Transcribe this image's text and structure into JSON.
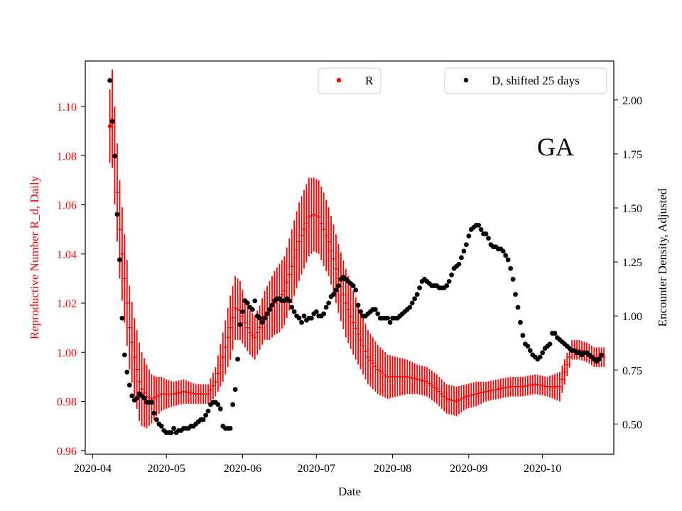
{
  "chart_data": {
    "type": "scatter",
    "state_label": "GA",
    "xlabel": "Date",
    "ylabel_left": "Reproductive Number R_d, Daily",
    "ylabel_right": "Encounter Density, Adjusted",
    "x_ticks": [
      "2020-04",
      "2020-05",
      "2020-06",
      "2020-07",
      "2020-08",
      "2020-09",
      "2020-10"
    ],
    "x_tick_days": [
      0,
      30,
      61,
      91,
      122,
      153,
      183
    ],
    "xlim_days": [
      -3,
      212
    ],
    "ylim_left": [
      0.9585,
      1.1185
    ],
    "ylim_right": [
      0.36,
      2.18
    ],
    "yticks_left": [
      "0.96",
      "0.98",
      "1.00",
      "1.02",
      "1.04",
      "1.06",
      "1.08",
      "1.10"
    ],
    "yticks_right": [
      "0.50",
      "0.75",
      "1.00",
      "1.25",
      "1.50",
      "1.75",
      "2.00"
    ],
    "legend_left": "R",
    "legend_right": "D, shifted 25 days",
    "colors": {
      "R": "#ff0000",
      "D": "#000000",
      "left_axis": "#ff0000"
    },
    "series": [
      {
        "name": "R",
        "axis": "left",
        "note": "daily Rd with vertical error bars (knots interpolated daily)",
        "day": [
          7,
          8,
          9,
          10,
          11,
          13,
          15,
          17,
          19,
          20,
          22,
          24,
          26,
          28,
          30,
          33,
          37,
          42,
          47,
          50,
          53,
          56,
          58,
          60,
          62,
          64,
          66,
          68,
          70,
          72,
          74,
          76,
          78,
          81,
          84,
          86,
          88,
          90,
          92,
          94,
          96,
          98,
          100,
          103,
          106,
          109,
          112,
          116,
          120,
          124,
          128,
          132,
          136,
          140,
          144,
          148,
          152,
          156,
          160,
          165,
          170,
          175,
          180,
          185,
          190,
          195,
          198,
          201,
          204,
          208
        ],
        "value": [
          1.092,
          1.095,
          1.08,
          1.065,
          1.05,
          1.03,
          1.01,
          0.998,
          0.988,
          0.985,
          0.982,
          0.981,
          0.982,
          0.983,
          0.983,
          0.983,
          0.984,
          0.983,
          0.983,
          0.988,
          0.998,
          1.01,
          1.018,
          1.017,
          1.012,
          1.008,
          1.006,
          1.01,
          1.015,
          1.017,
          1.02,
          1.022,
          1.025,
          1.035,
          1.045,
          1.05,
          1.055,
          1.056,
          1.055,
          1.05,
          1.045,
          1.038,
          1.03,
          1.02,
          1.012,
          1.005,
          0.998,
          0.993,
          0.99,
          0.99,
          0.99,
          0.989,
          0.988,
          0.985,
          0.981,
          0.98,
          0.982,
          0.983,
          0.984,
          0.985,
          0.986,
          0.986,
          0.987,
          0.986,
          0.986,
          1.001,
          1.001,
          1.0,
          0.998,
          0.998
        ],
        "half_width": [
          0.015,
          0.02,
          0.02,
          0.02,
          0.02,
          0.018,
          0.017,
          0.016,
          0.016,
          0.015,
          0.013,
          0.01,
          0.008,
          0.007,
          0.006,
          0.005,
          0.005,
          0.004,
          0.004,
          0.006,
          0.01,
          0.013,
          0.013,
          0.012,
          0.01,
          0.009,
          0.009,
          0.009,
          0.01,
          0.012,
          0.013,
          0.014,
          0.014,
          0.015,
          0.016,
          0.016,
          0.016,
          0.015,
          0.015,
          0.015,
          0.014,
          0.014,
          0.014,
          0.014,
          0.013,
          0.012,
          0.011,
          0.01,
          0.009,
          0.008,
          0.007,
          0.006,
          0.006,
          0.006,
          0.006,
          0.006,
          0.005,
          0.005,
          0.004,
          0.004,
          0.004,
          0.004,
          0.004,
          0.004,
          0.006,
          0.004,
          0.004,
          0.004,
          0.004,
          0.004
        ]
      },
      {
        "name": "D, shifted 25 days",
        "axis": "right",
        "day": [
          7,
          8,
          9,
          10,
          11,
          12,
          13,
          14,
          15,
          16,
          17,
          18,
          19,
          20,
          21,
          22,
          23,
          24,
          25,
          26,
          27,
          28,
          29,
          30,
          31,
          32,
          33,
          34,
          35,
          36,
          37,
          38,
          39,
          40,
          41,
          42,
          43,
          44,
          45,
          46,
          47,
          48,
          49,
          50,
          51,
          52,
          53,
          54,
          55,
          56,
          57,
          58,
          59,
          60,
          61,
          62,
          63,
          64,
          65,
          66,
          67,
          68,
          69,
          70,
          71,
          72,
          73,
          74,
          75,
          76,
          77,
          78,
          79,
          80,
          81,
          82,
          83,
          84,
          85,
          86,
          87,
          88,
          89,
          90,
          91,
          92,
          93,
          94,
          95,
          96,
          97,
          98,
          99,
          100,
          101,
          102,
          103,
          104,
          105,
          106,
          107,
          108,
          109,
          110,
          111,
          112,
          113,
          114,
          115,
          116,
          117,
          118,
          119,
          120,
          121,
          122,
          123,
          124,
          125,
          126,
          127,
          128,
          129,
          130,
          131,
          132,
          133,
          134,
          135,
          136,
          137,
          138,
          139,
          140,
          141,
          142,
          143,
          144,
          145,
          146,
          147,
          148,
          149,
          150,
          151,
          152,
          153,
          154,
          155,
          156,
          157,
          158,
          159,
          160,
          161,
          162,
          163,
          164,
          165,
          166,
          167,
          168,
          169,
          170,
          171,
          172,
          173,
          174,
          175,
          176,
          177,
          178,
          179,
          180,
          181,
          182,
          183,
          184,
          185,
          186,
          187,
          188,
          189,
          190,
          191,
          192,
          193,
          194,
          195,
          196,
          197,
          198,
          199,
          200,
          201,
          202,
          203,
          204,
          205,
          206,
          207
        ],
        "value": [
          2.09,
          1.9,
          1.74,
          1.47,
          1.26,
          0.99,
          0.82,
          0.74,
          0.68,
          0.63,
          0.61,
          0.62,
          0.64,
          0.63,
          0.62,
          0.6,
          0.6,
          0.6,
          0.55,
          0.52,
          0.5,
          0.49,
          0.47,
          0.46,
          0.46,
          0.46,
          0.48,
          0.46,
          0.47,
          0.47,
          0.48,
          0.48,
          0.48,
          0.49,
          0.49,
          0.5,
          0.51,
          0.52,
          0.52,
          0.54,
          0.56,
          0.59,
          0.6,
          0.6,
          0.59,
          0.57,
          0.49,
          0.48,
          0.48,
          0.48,
          0.59,
          0.66,
          0.8,
          0.96,
          1.02,
          1.07,
          1.06,
          1.04,
          1.03,
          1.07,
          1.0,
          0.99,
          0.97,
          0.99,
          1.01,
          1.03,
          1.05,
          1.07,
          1.08,
          1.08,
          1.07,
          1.07,
          1.08,
          1.07,
          1.04,
          1.02,
          1.0,
          0.99,
          0.97,
          1.0,
          0.98,
          0.99,
          0.99,
          1.01,
          1.02,
          1.0,
          1.0,
          1.01,
          1.04,
          1.06,
          1.09,
          1.1,
          1.12,
          1.14,
          1.17,
          1.18,
          1.17,
          1.16,
          1.15,
          1.14,
          1.12,
          1.05,
          1.02,
          1.0,
          1.0,
          1.01,
          1.02,
          1.03,
          1.03,
          1.01,
          0.99,
          0.99,
          0.99,
          0.99,
          0.97,
          0.99,
          0.99,
          0.99,
          1.0,
          1.01,
          1.02,
          1.03,
          1.04,
          1.06,
          1.08,
          1.1,
          1.13,
          1.16,
          1.17,
          1.16,
          1.15,
          1.14,
          1.14,
          1.14,
          1.13,
          1.13,
          1.13,
          1.14,
          1.16,
          1.19,
          1.22,
          1.23,
          1.24,
          1.27,
          1.3,
          1.33,
          1.37,
          1.4,
          1.41,
          1.42,
          1.42,
          1.4,
          1.38,
          1.38,
          1.36,
          1.33,
          1.32,
          1.32,
          1.31,
          1.31,
          1.3,
          1.28,
          1.26,
          1.22,
          1.17,
          1.1,
          1.04,
          0.97,
          0.91,
          0.87,
          0.86,
          0.84,
          0.82,
          0.81,
          0.8,
          0.81,
          0.83,
          0.85,
          0.86,
          0.87,
          0.92,
          0.92,
          0.9,
          0.89,
          0.88,
          0.87,
          0.86,
          0.85,
          0.84,
          0.84,
          0.83,
          0.83,
          0.82,
          0.83,
          0.83,
          0.82,
          0.81,
          0.8,
          0.79,
          0.8,
          0.82,
          0.84,
          0.86
        ]
      }
    ]
  }
}
